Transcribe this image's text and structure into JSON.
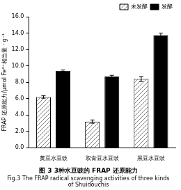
{
  "chart_data": {
    "type": "bar",
    "title": "图 3 3种水豆豉的 FRAP 还原能力",
    "subtitle": "Fig.3 The FRAP radical scavenging activities of three kinds of Shuidouchis",
    "y_label": "FRAP 还原能力/μmol Fe²⁺相当量 · g⁻¹",
    "categories": [
      "黄豆水豆豉",
      "双青豆水豆豉",
      "黑豆水豆豉"
    ],
    "series": [
      {
        "name": "未发酵",
        "color": "#808080",
        "values": [
          6.2,
          3.2,
          8.4
        ],
        "errors": [
          0.15,
          0.2,
          0.3
        ]
      },
      {
        "name": "发酵",
        "color": "#000000",
        "values": [
          9.4,
          8.7,
          13.7
        ],
        "errors": [
          0.1,
          0.15,
          0.3
        ]
      }
    ],
    "ylim": [
      0,
      16
    ],
    "yticks": [
      {
        "value": 0,
        "label": "0.0"
      },
      {
        "value": 2,
        "label": "2.0"
      },
      {
        "value": 4,
        "label": "4.0"
      },
      {
        "value": 6,
        "label": "6.0"
      },
      {
        "value": 8,
        "label": "8.0"
      },
      {
        "value": 10,
        "label": "10.0"
      },
      {
        "value": 12,
        "label": "12.0"
      },
      {
        "value": 14,
        "label": "14.0"
      },
      {
        "value": 16,
        "label": "16.0"
      }
    ],
    "grid": false,
    "legend": "upper right"
  }
}
